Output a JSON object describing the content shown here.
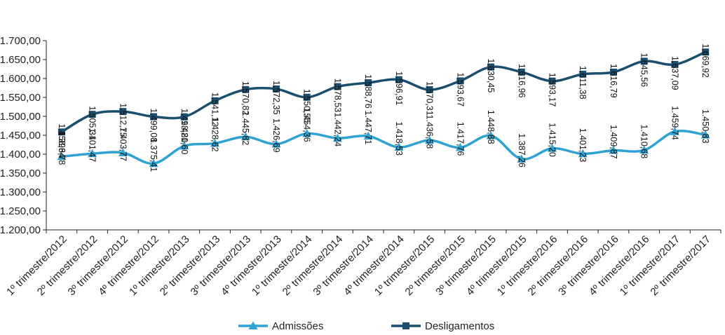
{
  "chart_data": {
    "type": "line",
    "title": "",
    "xlabel": "",
    "ylabel": "",
    "ylim": [
      1200,
      1700
    ],
    "yticks": [
      "1.200,00",
      "1.250,00",
      "1.300,00",
      "1.350,00",
      "1.400,00",
      "1.450,00",
      "1.500,00",
      "1.550,00",
      "1.600,00",
      "1.650,00",
      "1.700,00"
    ],
    "grid": false,
    "legend_position": "bottom",
    "categories": [
      "1º trimestre/2012",
      "2º trimestre/2012",
      "3º trimestre/2012",
      "4º trimestre/2012",
      "1º trimestre/2013",
      "2º trimestre/2013",
      "3º trimestre/2013",
      "4º trimestre/2013",
      "1º trimestre/2014",
      "2º trimestre/2014",
      "3º trimestre/2014",
      "4º trimestre/2014",
      "1º trimestre/2015",
      "2º trimestre/2015",
      "3º trimestre/2015",
      "4º trimestre/2015",
      "1º trimestre/2016",
      "2º trimestre/2016",
      "3º trimestre/2016",
      "4º trimestre/2016",
      "1º trimestre/2017",
      "2º trimestre/2017"
    ],
    "series": [
      {
        "name": "Admissões",
        "color": "#2ea3d3",
        "marker": "triangle",
        "label_position": "below",
        "values": [
          1393.78,
          1401.47,
          1403.77,
          1375.41,
          1421.6,
          1428.62,
          1445.82,
          1426.69,
          1454.36,
          1442.24,
          1447.71,
          1418.53,
          1436.58,
          1417.76,
          1448.88,
          1387.26,
          1415.2,
          1401.23,
          1409.87,
          1410.68,
          1459.74,
          1450.83
        ],
        "labels": [
          "1.393,78",
          "1.401,47",
          "1.403,77",
          "1.375,41",
          "1.421,60",
          "1.428,62",
          "1.445,82",
          "1.426,69",
          "1.454,36",
          "1.442,24",
          "1.447,71",
          "1.418,53",
          "1.436,58",
          "1.417,76",
          "1.448,88",
          "1.387,26",
          "1.415,20",
          "1.401,23",
          "1.409,87",
          "1.410,68",
          "1.459,74",
          "1.450,83"
        ]
      },
      {
        "name": "Desligamentos",
        "color": "#1a4e6e",
        "marker": "square",
        "label_position": "above",
        "values": [
          1458.64,
          1505.31,
          1512.75,
          1499.08,
          1498.8,
          1541.12,
          1570.82,
          1572.35,
          1550.55,
          1578.53,
          1588.76,
          1596.91,
          1570.31,
          1593.67,
          1630.45,
          1616.96,
          1593.17,
          1611.38,
          1616.79,
          1645.56,
          1637.09,
          1669.92
        ],
        "labels": [
          "1.458,64",
          "1.505,31",
          "1.512,75",
          "1.499,08",
          "1.498,80",
          "1.541,12",
          "1.570,82",
          "1.572,35",
          "1.550,55",
          "1.578,53",
          "1.588,76",
          "1.596,91",
          "1.570,31",
          "1.593,67",
          "1.630,45",
          "1.616,96",
          "1.593,17",
          "1.611,38",
          "1.616,79",
          "1.645,56",
          "1.637,09",
          "1.669,92"
        ]
      }
    ]
  }
}
